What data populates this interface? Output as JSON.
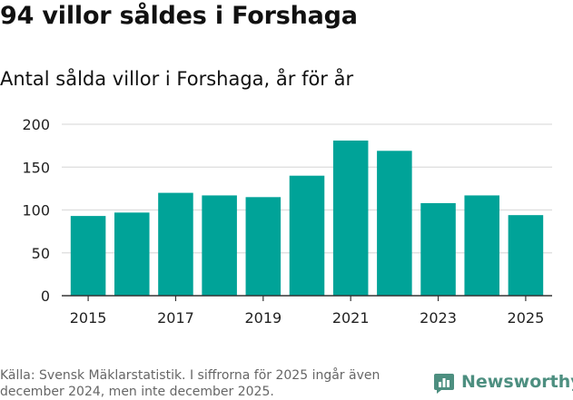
{
  "header": {
    "title": "94 villor såldes i Forshaga",
    "subtitle": "Antal sålda villor i Forshaga, år för år"
  },
  "footer": {
    "source": "Källa: Svensk Mäklarstatistik. I siffrorna för 2025 ingår även december 2024, men inte december 2025.",
    "brand": "Newsworthy"
  },
  "colors": {
    "bar": "#00a398",
    "grid": "#dddddd",
    "axis": "#333333",
    "brand": "#4d8f80"
  },
  "chart_data": {
    "type": "bar",
    "title": "",
    "xlabel": "",
    "ylabel": "",
    "x": [
      2015,
      2016,
      2017,
      2018,
      2019,
      2020,
      2021,
      2022,
      2023,
      2024,
      2025
    ],
    "values": [
      93,
      97,
      120,
      117,
      115,
      140,
      181,
      169,
      108,
      117,
      94
    ],
    "ylim": [
      0,
      200
    ],
    "yticks": [
      0,
      50,
      100,
      150,
      200
    ],
    "xticks": [
      2015,
      2017,
      2019,
      2021,
      2023,
      2025
    ],
    "grid": "horizontal",
    "legend": "none"
  }
}
